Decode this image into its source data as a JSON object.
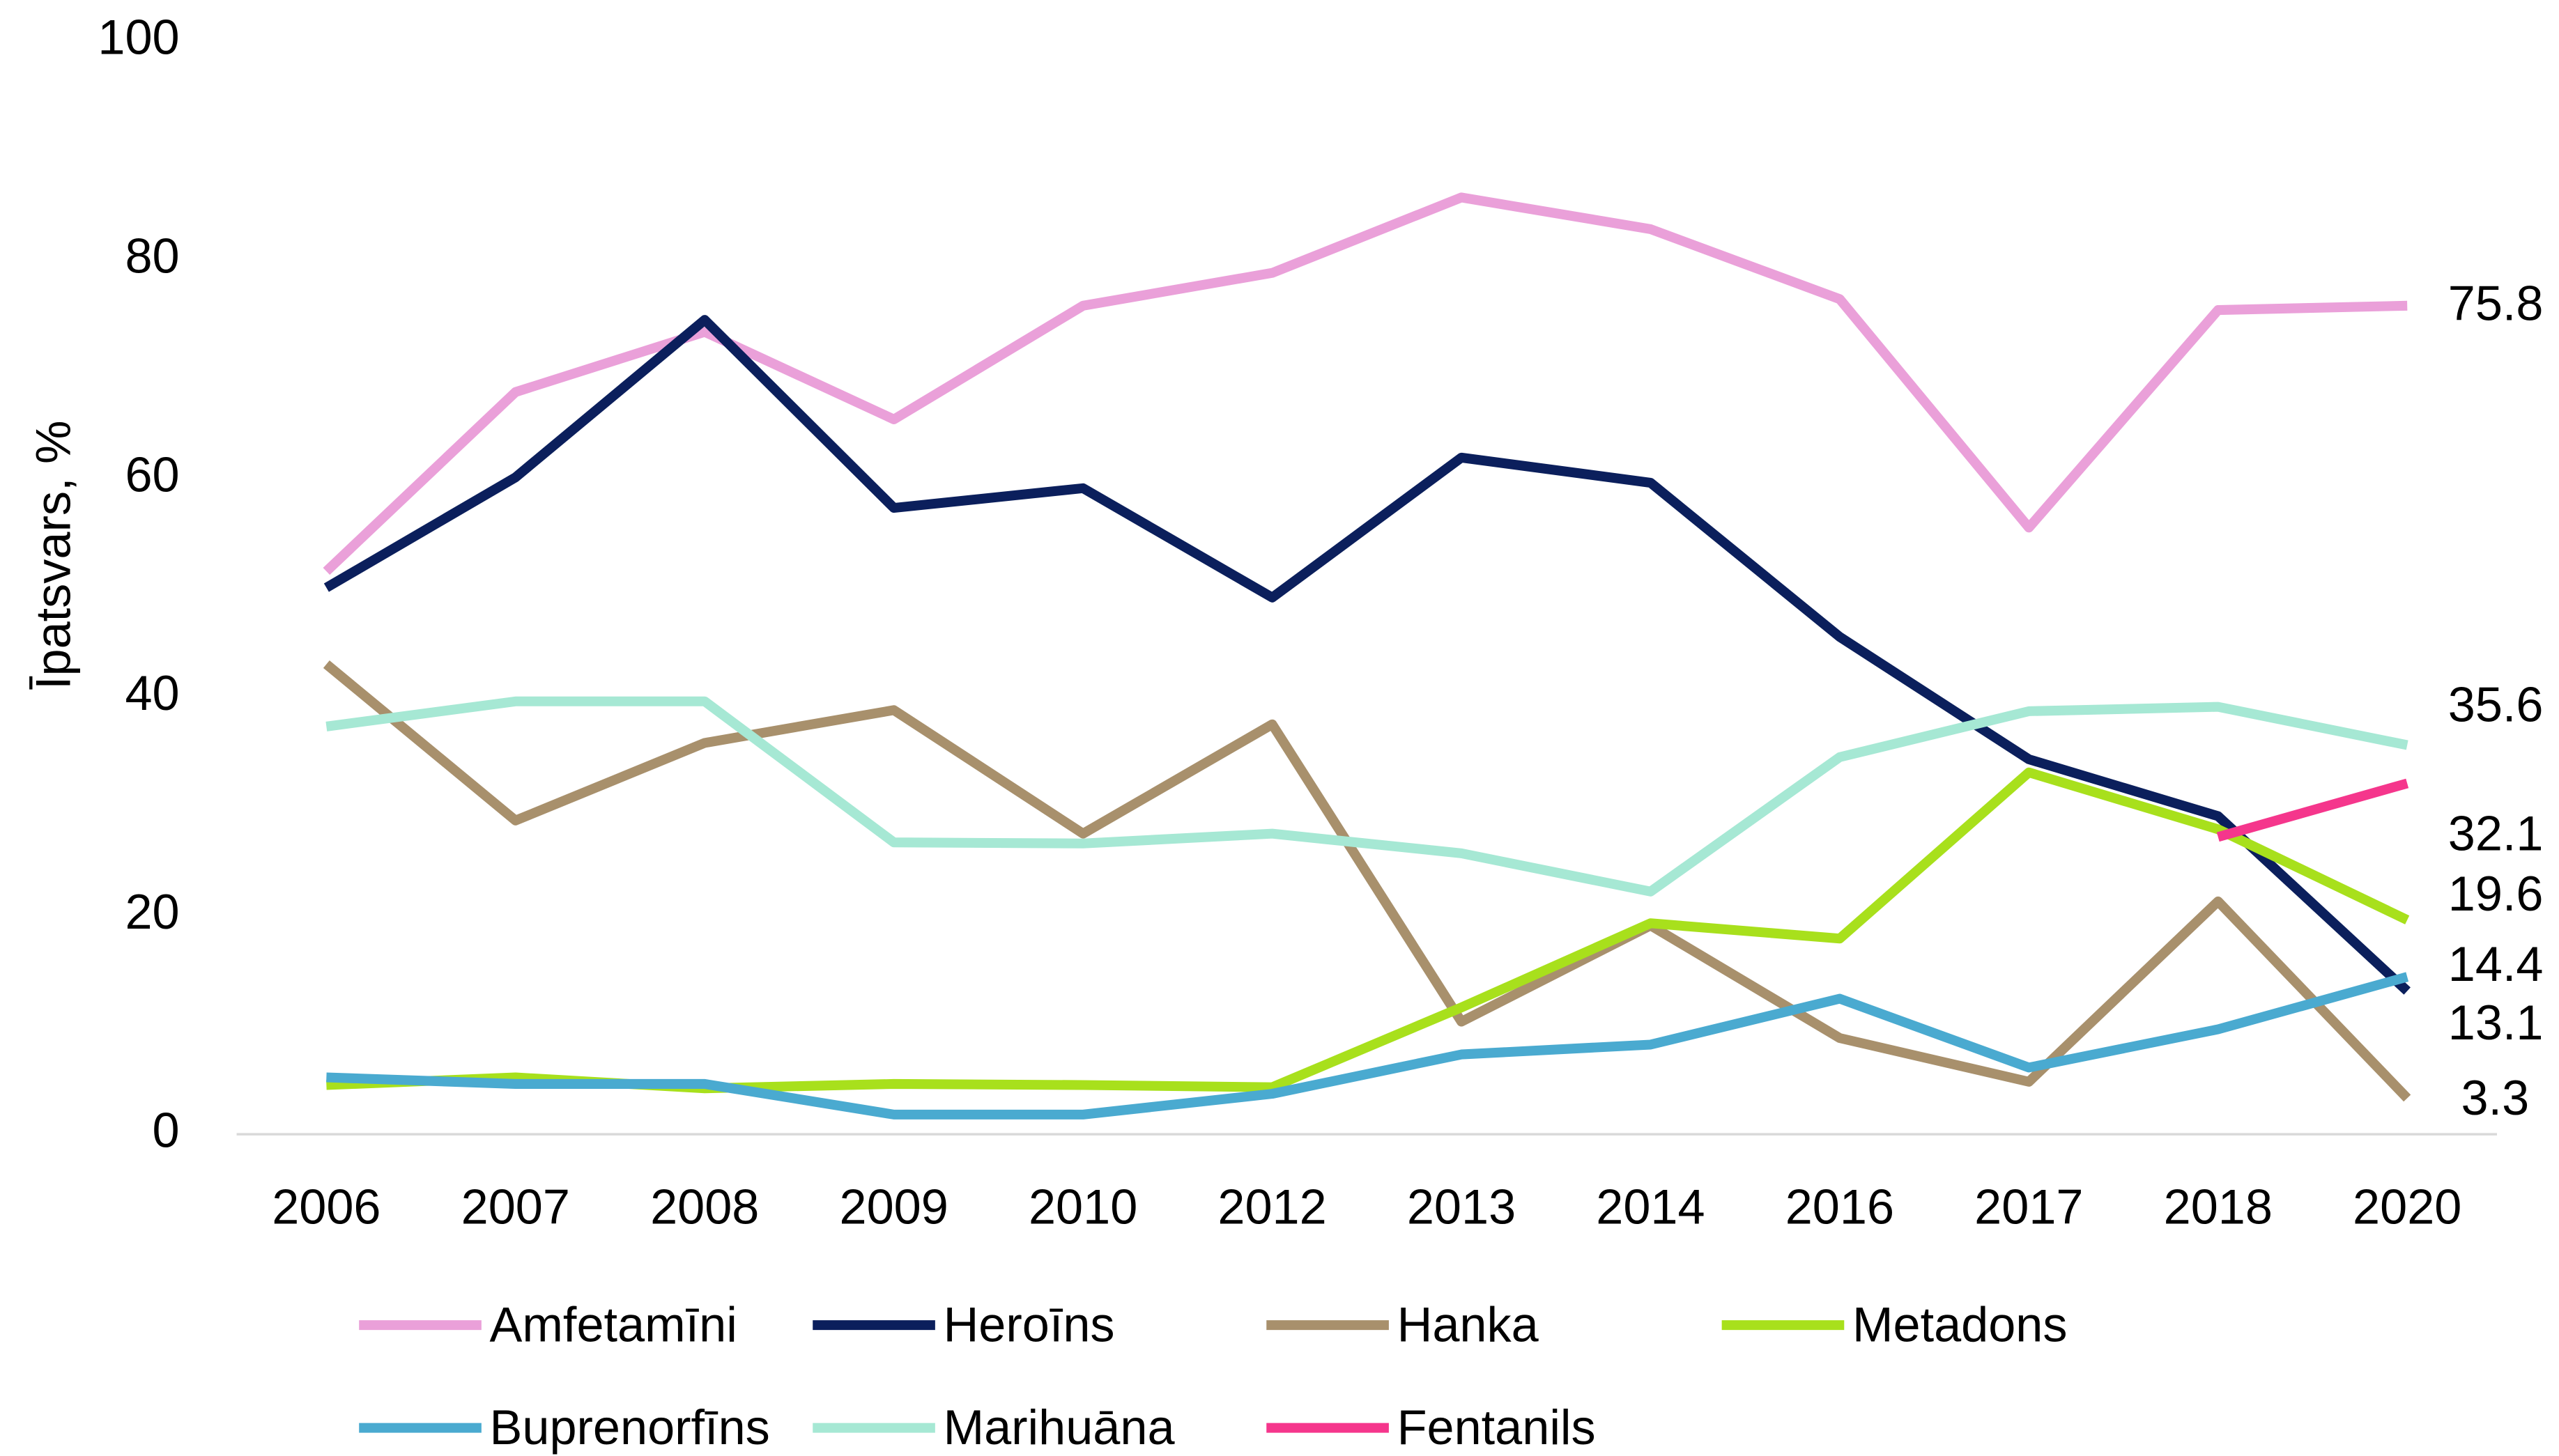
{
  "chart_data": {
    "type": "line",
    "y_label": "Īpatsvars, %",
    "categories": [
      "2006",
      "2007",
      "2008",
      "2009",
      "2010",
      "2012",
      "2013",
      "2014",
      "2016",
      "2017",
      "2018",
      "2020"
    ],
    "ylim": [
      0,
      100
    ],
    "yticks": [
      0,
      20,
      40,
      60,
      80,
      100
    ],
    "grid": false,
    "series": [
      {
        "name": "Amfetamīni",
        "color": "#eaa0d9",
        "values": [
          51.5,
          67.9,
          73.4,
          65.4,
          75.8,
          78.8,
          85.7,
          82.8,
          76.4,
          55.5,
          75.4,
          75.8
        ]
      },
      {
        "name": "Heroīns",
        "color": "#0b1f5c",
        "values": [
          50.0,
          60.1,
          74.5,
          57.3,
          59.1,
          49.1,
          61.9,
          59.6,
          45.5,
          34.3,
          29.1,
          13.1
        ]
      },
      {
        "name": "Hanka",
        "color": "#a8906c",
        "values": [
          43.0,
          28.7,
          35.8,
          38.8,
          27.5,
          37.5,
          10.3,
          19.1,
          8.8,
          4.8,
          21.3,
          3.3
        ]
      },
      {
        "name": "Metadons",
        "color": "#a8e01c",
        "values": [
          4.5,
          5.2,
          4.2,
          4.6,
          4.5,
          4.3,
          11.6,
          19.3,
          17.9,
          33.1,
          27.9,
          19.6
        ]
      },
      {
        "name": "Buprenorfīns",
        "color": "#4aaad0",
        "values": [
          5.2,
          4.6,
          4.6,
          1.8,
          1.8,
          3.7,
          7.3,
          8.2,
          12.4,
          6.1,
          9.6,
          14.4
        ]
      },
      {
        "name": "Marihuāna",
        "color": "#a6e8d4",
        "values": [
          37.3,
          39.6,
          39.6,
          26.7,
          26.6,
          27.5,
          25.7,
          22.2,
          34.5,
          38.7,
          39.1,
          35.6
        ]
      },
      {
        "name": "Fentanils",
        "color": "#f5368c",
        "values": [
          null,
          null,
          null,
          null,
          null,
          null,
          null,
          null,
          null,
          null,
          27.2,
          32.1
        ]
      }
    ]
  }
}
